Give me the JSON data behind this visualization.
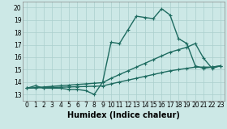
{
  "xlabel": "Humidex (Indice chaleur)",
  "bg_color": "#cce8e6",
  "grid_color": "#aacfcd",
  "line_color": "#1e6b60",
  "xlim": [
    -0.5,
    23.5
  ],
  "ylim": [
    12.5,
    20.5
  ],
  "xticks": [
    0,
    1,
    2,
    3,
    4,
    5,
    6,
    7,
    8,
    9,
    10,
    11,
    12,
    13,
    14,
    15,
    16,
    17,
    18,
    19,
    20,
    21,
    22,
    23
  ],
  "yticks": [
    13,
    14,
    15,
    16,
    17,
    18,
    19,
    20
  ],
  "line1_x": [
    0,
    1,
    2,
    3,
    4,
    5,
    6,
    7,
    8,
    9,
    10,
    11,
    12,
    13,
    14,
    15,
    16,
    17,
    18,
    19,
    20,
    21,
    22,
    23
  ],
  "line1_y": [
    13.5,
    13.7,
    13.5,
    13.5,
    13.5,
    13.4,
    13.4,
    13.3,
    13.0,
    14.0,
    17.2,
    17.1,
    18.2,
    19.3,
    19.2,
    19.1,
    19.9,
    19.4,
    17.5,
    17.1,
    15.3,
    15.1,
    15.2,
    15.3
  ],
  "line2_x": [
    0,
    1,
    2,
    3,
    4,
    5,
    6,
    7,
    8,
    9,
    10,
    11,
    12,
    13,
    14,
    15,
    16,
    17,
    18,
    19,
    20,
    21,
    22,
    23
  ],
  "line2_y": [
    13.5,
    13.55,
    13.6,
    13.65,
    13.7,
    13.75,
    13.8,
    13.85,
    13.9,
    13.95,
    14.3,
    14.6,
    14.9,
    15.2,
    15.5,
    15.8,
    16.1,
    16.4,
    16.6,
    16.8,
    17.1,
    15.9,
    15.1,
    15.3
  ],
  "line3_x": [
    0,
    1,
    2,
    3,
    4,
    5,
    6,
    7,
    8,
    9,
    10,
    11,
    12,
    13,
    14,
    15,
    16,
    17,
    18,
    19,
    20,
    21,
    22,
    23
  ],
  "line3_y": [
    13.5,
    13.52,
    13.54,
    13.56,
    13.58,
    13.6,
    13.62,
    13.64,
    13.66,
    13.68,
    13.85,
    14.0,
    14.15,
    14.3,
    14.45,
    14.6,
    14.75,
    14.9,
    15.0,
    15.1,
    15.2,
    15.2,
    15.2,
    15.3
  ],
  "marker_size": 3,
  "line_width": 1.0,
  "tick_fontsize": 5.5,
  "xlabel_fontsize": 7.0
}
